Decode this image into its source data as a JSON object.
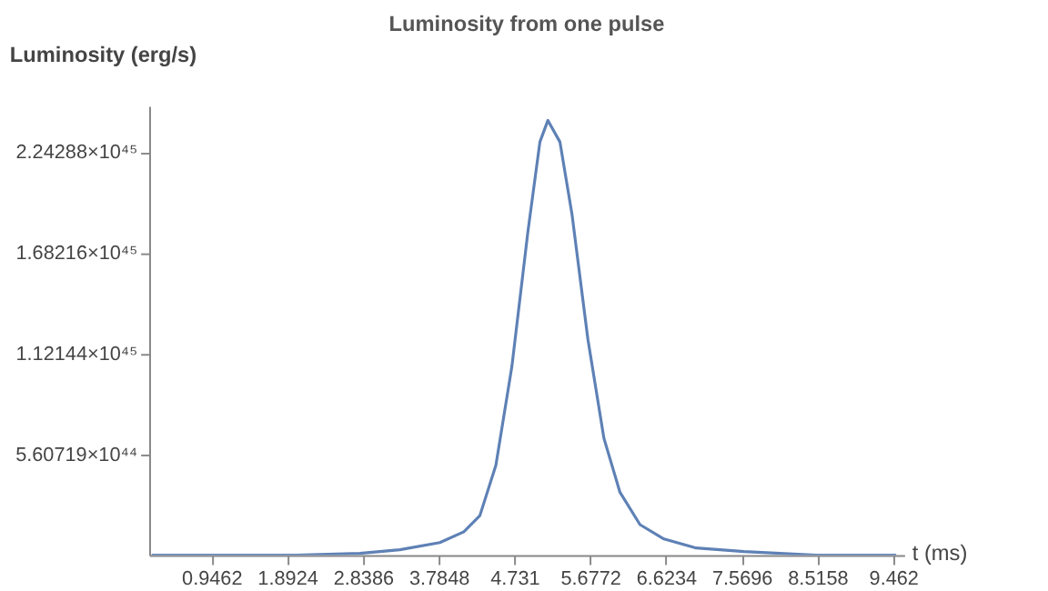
{
  "chart_data": {
    "type": "line",
    "title": "Luminosity from one pulse",
    "xlabel": "t (ms)",
    "ylabel": "Luminosity (erg/s)",
    "x": [
      0.2,
      1.0,
      2.0,
      2.8,
      3.3,
      3.8,
      4.1,
      4.3,
      4.5,
      4.7,
      4.9,
      5.05,
      5.15,
      5.3,
      5.45,
      5.65,
      5.85,
      6.05,
      6.3,
      6.6,
      7.0,
      7.6,
      8.5,
      9.5
    ],
    "series": [
      {
        "color": "#5e81b5",
        "values": [
          0,
          0,
          0,
          1e+43,
          3e+43,
          7e+43,
          1.3e+44,
          2.2e+44,
          5e+44,
          1.05e+45,
          1.8e+45,
          2.3e+45,
          2.42e+45,
          2.3e+45,
          1.9e+45,
          1.2e+45,
          6.5e+44,
          3.5e+44,
          1.7e+44,
          9e+43,
          4e+43,
          2e+43,
          0,
          0
        ]
      }
    ],
    "xlim": [
      0.17,
      9.6
    ],
    "ylim": [
      0,
      2.5e+45
    ],
    "xticks": [
      0.9462,
      1.8924,
      2.8386,
      3.7848,
      4.731,
      5.6772,
      6.6234,
      7.5696,
      8.5158,
      9.462
    ],
    "yticks": [
      {
        "value": 5.60719e+44,
        "label": "5.60719×10⁴⁴"
      },
      {
        "value": 1.12144e+45,
        "label": "1.12144×10⁴⁵"
      },
      {
        "value": 1.68216e+45,
        "label": "1.68216×10⁴⁵"
      },
      {
        "value": 2.24288e+45,
        "label": "2.24288×10⁴⁵"
      }
    ],
    "grid": false,
    "marker": "none",
    "line_style": "solid"
  }
}
